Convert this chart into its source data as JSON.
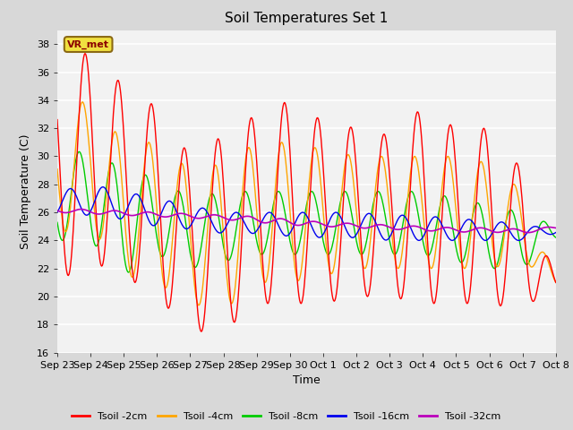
{
  "title": "Soil Temperatures Set 1",
  "xlabel": "Time",
  "ylabel": "Soil Temperature (C)",
  "ylim": [
    16,
    39
  ],
  "yticks": [
    16,
    18,
    20,
    22,
    24,
    26,
    28,
    30,
    32,
    34,
    36,
    38
  ],
  "fig_bg_color": "#d8d8d8",
  "plot_bg_color": "#f2f2f2",
  "station_label": "VR_met",
  "station_box_color": "#f0e040",
  "station_text_color": "#8b0000",
  "legend_entries": [
    "Tsoil -2cm",
    "Tsoil -4cm",
    "Tsoil -8cm",
    "Tsoil -16cm",
    "Tsoil -32cm"
  ],
  "line_colors": [
    "#ff0000",
    "#ffa500",
    "#00cc00",
    "#0000ee",
    "#bb00bb"
  ],
  "xtick_labels": [
    "Sep 23",
    "Sep 24",
    "Sep 25",
    "Sep 26",
    "Sep 27",
    "Sep 28",
    "Sep 29",
    "Sep 30",
    "Oct 1",
    "Oct 2",
    "Oct 3",
    "Oct 4",
    "Oct 5",
    "Oct 6",
    "Oct 7",
    "Oct 8"
  ],
  "tsoil_2cm_peaks": [
    36.5,
    37.5,
    35.0,
    33.5,
    30.0,
    31.5,
    33.0,
    34.0,
    32.5,
    32.0,
    31.5,
    33.5,
    32.0,
    32.0,
    29.0,
    21.0
  ],
  "tsoil_2cm_troughs": [
    21.0,
    22.5,
    21.5,
    20.0,
    17.5,
    17.5,
    19.5,
    19.5,
    19.5,
    20.0,
    20.0,
    19.5,
    19.5,
    19.5,
    19.0,
    21.0
  ],
  "tsoil_4cm_peaks": [
    33.5,
    34.0,
    31.0,
    31.0,
    29.0,
    29.5,
    31.0,
    31.0,
    30.5,
    30.0,
    30.0,
    30.0,
    30.0,
    29.5,
    27.5,
    21.0
  ],
  "tsoil_4cm_troughs": [
    24.5,
    25.0,
    21.5,
    21.0,
    19.5,
    19.0,
    21.0,
    21.0,
    21.5,
    22.0,
    22.0,
    22.0,
    22.0,
    22.0,
    22.5,
    21.0
  ],
  "tsoil_8cm_peaks": [
    30.0,
    30.5,
    29.0,
    28.5,
    27.0,
    27.5,
    27.5,
    27.5,
    27.5,
    27.5,
    27.5,
    27.5,
    27.0,
    26.5,
    26.0,
    25.0
  ],
  "tsoil_8cm_troughs": [
    24.0,
    24.0,
    21.5,
    23.0,
    22.0,
    22.5,
    23.0,
    23.0,
    23.0,
    23.0,
    23.0,
    23.0,
    22.5,
    22.0,
    22.0,
    24.0
  ],
  "tsoil_16cm_peaks": [
    27.5,
    28.0,
    27.5,
    27.0,
    26.5,
    26.0,
    26.0,
    26.0,
    26.0,
    26.0,
    25.8,
    25.8,
    25.5,
    25.5,
    25.0,
    25.0
  ],
  "tsoil_16cm_troughs": [
    25.8,
    25.8,
    25.5,
    25.0,
    24.8,
    24.5,
    24.5,
    24.3,
    24.2,
    24.2,
    24.0,
    24.0,
    24.0,
    24.0,
    24.0,
    24.5
  ],
  "tsoil_32cm_peaks": [
    26.3,
    26.2,
    26.1,
    26.0,
    25.9,
    25.8,
    25.7,
    25.5,
    25.3,
    25.2,
    25.1,
    25.0,
    24.9,
    24.9,
    24.8,
    25.0
  ],
  "tsoil_32cm_troughs": [
    26.0,
    25.9,
    25.8,
    25.7,
    25.6,
    25.5,
    25.3,
    25.1,
    25.0,
    24.9,
    24.8,
    24.7,
    24.6,
    24.6,
    24.5,
    24.8
  ]
}
